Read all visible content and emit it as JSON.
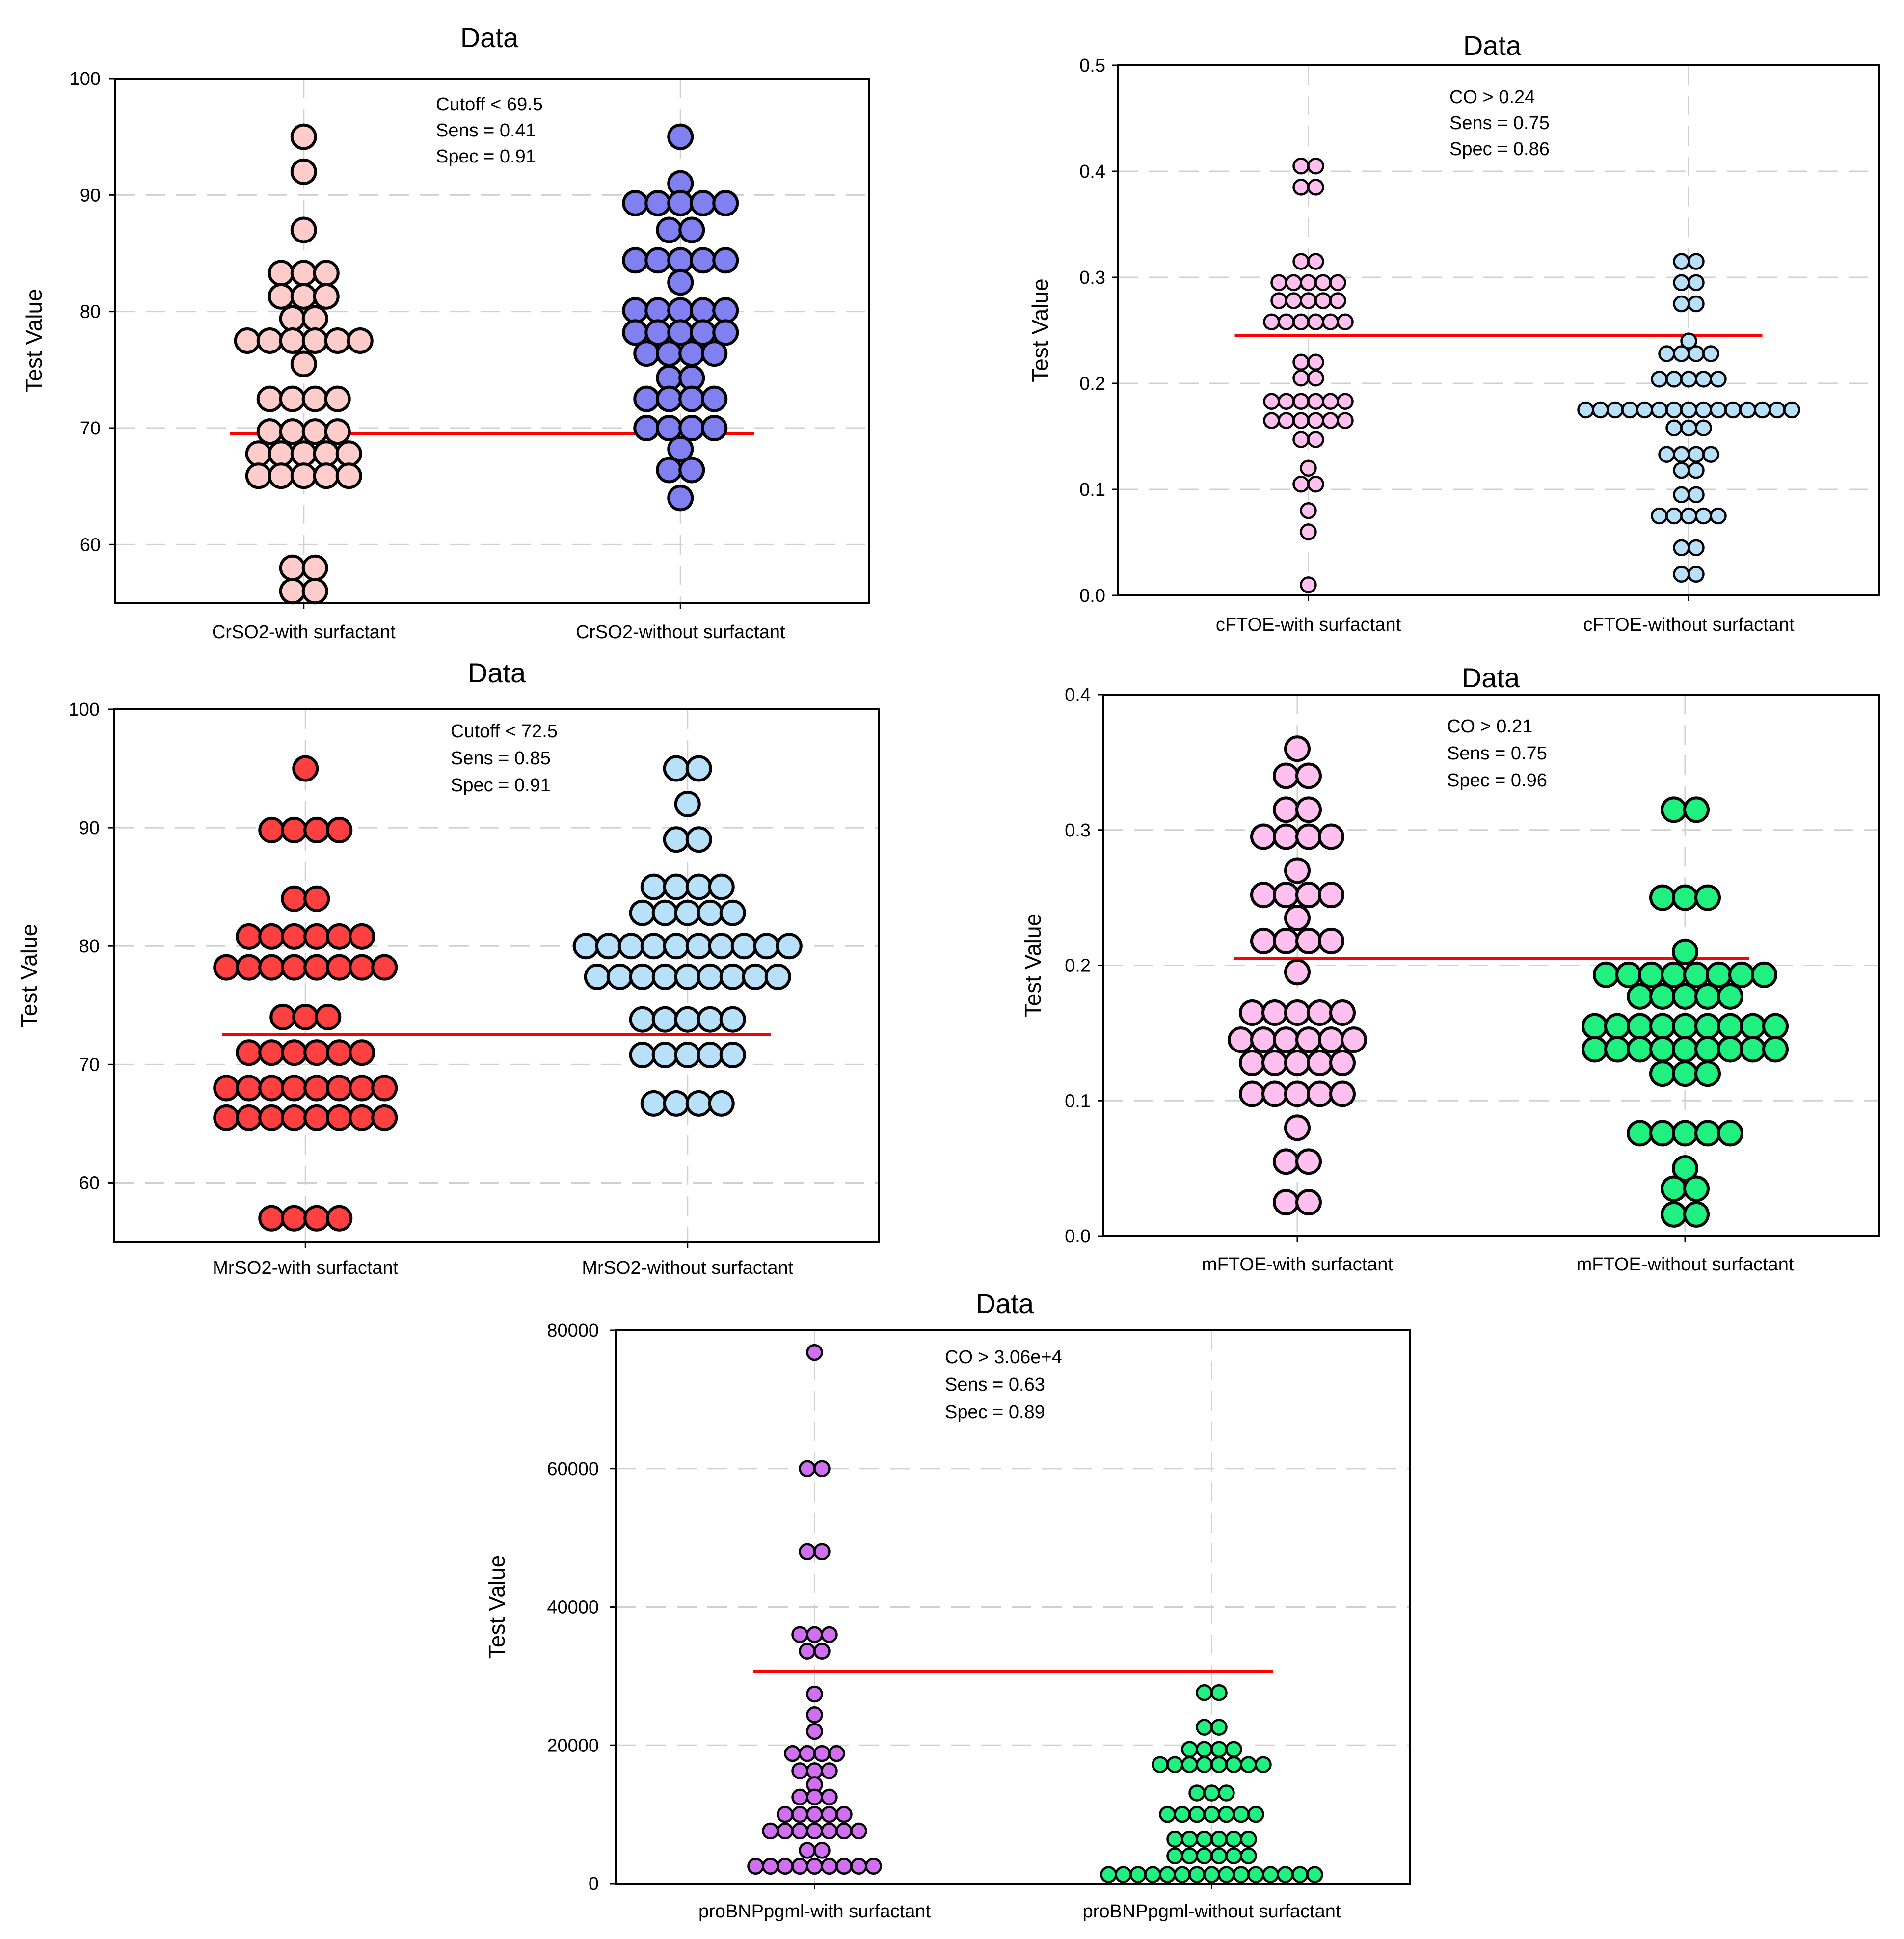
{
  "chart_data": [
    {
      "id": "crso2",
      "type": "scatter",
      "subtype": "dot-plot",
      "title": "Data",
      "xlabel": "",
      "ylabel": "Test Value",
      "ylim": [
        55,
        100
      ],
      "yticks": [
        "60",
        "70",
        "80",
        "90",
        "100"
      ],
      "grid": true,
      "cutoff": 69.5,
      "cutoff_color": "#ff0000",
      "annotations": [
        "Cutoff < 69.5",
        "Sens = 0.41",
        "Spec = 0.91"
      ],
      "categories": [
        "CrSO2-with surfactant",
        "CrSO2-without surfactant"
      ],
      "series": [
        {
          "name": "CrSO2-with surfactant",
          "color": "#ffcccc",
          "values": [
            95,
            92,
            87,
            83.3,
            83.3,
            83.3,
            81.3,
            81.3,
            81.3,
            79.4,
            79.4,
            77.5,
            77.5,
            77.5,
            77.5,
            77.5,
            77.5,
            75.5,
            72.5,
            72.5,
            72.5,
            72.5,
            69.7,
            69.7,
            69.7,
            69.7,
            67.8,
            67.8,
            67.8,
            67.8,
            67.8,
            65.9,
            65.9,
            65.9,
            65.9,
            65.9,
            58,
            58,
            56,
            56
          ]
        },
        {
          "name": "CrSO2-without surfactant",
          "color": "#8080f0",
          "values": [
            95,
            91,
            89.3,
            89.3,
            89.3,
            89.3,
            89.3,
            87,
            87,
            84.4,
            84.4,
            84.4,
            84.4,
            84.4,
            82.5,
            80.1,
            80.1,
            80.1,
            80.1,
            80.1,
            78.2,
            78.2,
            78.2,
            78.2,
            78.2,
            76.4,
            76.4,
            76.4,
            76.4,
            74.3,
            74.3,
            72.5,
            72.5,
            72.5,
            72.5,
            70,
            70,
            70,
            70,
            68.2,
            66.4,
            66.4,
            64
          ]
        }
      ]
    },
    {
      "id": "cftoe",
      "type": "scatter",
      "subtype": "dot-plot",
      "title": "Data",
      "xlabel": "",
      "ylabel": "Test Value",
      "ylim": [
        0,
        0.5
      ],
      "yticks": [
        "0.0",
        "0.1",
        "0.2",
        "0.3",
        "0.4",
        "0.5"
      ],
      "grid": true,
      "cutoff": 0.245,
      "cutoff_color": "#ff0000",
      "annotations": [
        "CO > 0.24",
        "Sens = 0.75",
        "Spec = 0.86"
      ],
      "categories": [
        "cFTOE-with surfactant",
        "cFTOE-without surfactant"
      ],
      "series": [
        {
          "name": "cFTOE-with surfactant",
          "color": "#ffc0f0",
          "values": [
            0.405,
            0.405,
            0.385,
            0.385,
            0.315,
            0.315,
            0.295,
            0.295,
            0.295,
            0.295,
            0.295,
            0.278,
            0.278,
            0.278,
            0.278,
            0.278,
            0.258,
            0.258,
            0.258,
            0.258,
            0.258,
            0.258,
            0.22,
            0.22,
            0.205,
            0.205,
            0.183,
            0.183,
            0.183,
            0.183,
            0.183,
            0.183,
            0.165,
            0.165,
            0.165,
            0.165,
            0.165,
            0.165,
            0.147,
            0.147,
            0.12,
            0.105,
            0.105,
            0.08,
            0.06,
            0.01
          ]
        },
        {
          "name": "cFTOE-without surfactant",
          "color": "#b8e0f8",
          "values": [
            0.315,
            0.315,
            0.295,
            0.295,
            0.275,
            0.275,
            0.24,
            0.228,
            0.228,
            0.228,
            0.228,
            0.204,
            0.204,
            0.204,
            0.204,
            0.204,
            0.175,
            0.175,
            0.175,
            0.175,
            0.175,
            0.175,
            0.175,
            0.175,
            0.175,
            0.175,
            0.175,
            0.175,
            0.175,
            0.175,
            0.175,
            0.158,
            0.158,
            0.158,
            0.133,
            0.133,
            0.133,
            0.133,
            0.118,
            0.118,
            0.095,
            0.095,
            0.075,
            0.075,
            0.075,
            0.075,
            0.075,
            0.045,
            0.045,
            0.02,
            0.02
          ]
        }
      ]
    },
    {
      "id": "mrso2",
      "type": "scatter",
      "subtype": "dot-plot",
      "title": "Data",
      "xlabel": "",
      "ylabel": "Test Value",
      "ylim": [
        55,
        100
      ],
      "yticks": [
        "60",
        "70",
        "80",
        "90",
        "100"
      ],
      "grid": true,
      "cutoff": 72.5,
      "cutoff_color": "#ff0000",
      "annotations": [
        "Cutoff < 72.5",
        "Sens = 0.85",
        "Spec = 0.91"
      ],
      "categories": [
        "MrSO2-with surfactant",
        "MrSO2-without surfactant"
      ],
      "series": [
        {
          "name": "MrSO2-with surfactant",
          "color": "#ff4040",
          "values": [
            95,
            89.8,
            89.8,
            89.8,
            89.8,
            84,
            84,
            80.8,
            80.8,
            80.8,
            80.8,
            80.8,
            80.8,
            78.2,
            78.2,
            78.2,
            78.2,
            78.2,
            78.2,
            78.2,
            78.2,
            74,
            74,
            74,
            71,
            71,
            71,
            71,
            71,
            71,
            68,
            68,
            68,
            68,
            68,
            68,
            68,
            68,
            65.5,
            65.5,
            65.5,
            65.5,
            65.5,
            65.5,
            65.5,
            65.5,
            57,
            57,
            57,
            57
          ]
        },
        {
          "name": "MrSO2-without surfactant",
          "color": "#b8e0f8",
          "values": [
            95,
            95,
            92,
            89,
            89,
            85,
            85,
            85,
            85,
            82.8,
            82.8,
            82.8,
            82.8,
            82.8,
            80,
            80,
            80,
            80,
            80,
            80,
            80,
            80,
            80,
            80,
            77.4,
            77.4,
            77.4,
            77.4,
            77.4,
            77.4,
            77.4,
            77.4,
            77.4,
            73.8,
            73.8,
            73.8,
            73.8,
            73.8,
            70.8,
            70.8,
            70.8,
            70.8,
            70.8,
            66.7,
            66.7,
            66.7,
            66.7
          ]
        }
      ]
    },
    {
      "id": "mftoe",
      "type": "scatter",
      "subtype": "dot-plot",
      "title": "Data",
      "xlabel": "",
      "ylabel": "Test Value",
      "ylim": [
        0,
        0.4
      ],
      "yticks": [
        "0.0",
        "0.1",
        "0.2",
        "0.3",
        "0.4"
      ],
      "grid": true,
      "cutoff": 0.205,
      "cutoff_color": "#ff0000",
      "annotations": [
        "CO > 0.21",
        "Sens = 0.75",
        "Spec = 0.96"
      ],
      "categories": [
        "mFTOE-with surfactant",
        "mFTOE-without surfactant"
      ],
      "series": [
        {
          "name": "mFTOE-with surfactant",
          "color": "#ffc0f0",
          "values": [
            0.36,
            0.34,
            0.34,
            0.315,
            0.315,
            0.295,
            0.295,
            0.295,
            0.295,
            0.27,
            0.252,
            0.252,
            0.252,
            0.252,
            0.235,
            0.218,
            0.218,
            0.218,
            0.218,
            0.195,
            0.165,
            0.165,
            0.165,
            0.165,
            0.165,
            0.145,
            0.145,
            0.145,
            0.145,
            0.145,
            0.145,
            0.128,
            0.128,
            0.128,
            0.128,
            0.128,
            0.105,
            0.105,
            0.105,
            0.105,
            0.105,
            0.08,
            0.055,
            0.055,
            0.025,
            0.025
          ]
        },
        {
          "name": "mFTOE-without surfactant",
          "color": "#20f080",
          "values": [
            0.315,
            0.315,
            0.25,
            0.25,
            0.25,
            0.21,
            0.193,
            0.193,
            0.193,
            0.193,
            0.193,
            0.193,
            0.193,
            0.193,
            0.177,
            0.177,
            0.177,
            0.177,
            0.177,
            0.155,
            0.155,
            0.155,
            0.155,
            0.155,
            0.155,
            0.155,
            0.155,
            0.155,
            0.138,
            0.138,
            0.138,
            0.138,
            0.138,
            0.138,
            0.138,
            0.138,
            0.138,
            0.12,
            0.12,
            0.12,
            0.076,
            0.076,
            0.076,
            0.076,
            0.076,
            0.05,
            0.035,
            0.035,
            0.016,
            0.016
          ]
        }
      ]
    },
    {
      "id": "probnp",
      "type": "scatter",
      "subtype": "dot-plot",
      "title": "Data",
      "xlabel": "",
      "ylabel": "Test Value",
      "ylim": [
        0,
        80000
      ],
      "yticks": [
        "0",
        "20000",
        "40000",
        "60000",
        "80000"
      ],
      "grid": true,
      "cutoff": 30600,
      "cutoff_color": "#ff0000",
      "annotations": [
        "CO > 3.06e+4",
        "Sens = 0.63",
        "Spec = 0.89"
      ],
      "categories": [
        "proBNPpgml-with surfactant",
        "proBNPpgml-without surfactant"
      ],
      "series": [
        {
          "name": "proBNPpgml-with surfactant",
          "color": "#d070f0",
          "values": [
            76800,
            60000,
            60000,
            48000,
            48000,
            36000,
            36000,
            36000,
            33600,
            33600,
            27400,
            24400,
            22000,
            18800,
            18800,
            18800,
            18800,
            16300,
            16300,
            16300,
            14300,
            12500,
            12500,
            12500,
            10000,
            10000,
            10000,
            10000,
            10000,
            7600,
            7600,
            7600,
            7600,
            7600,
            7600,
            7600,
            4800,
            4800,
            2500,
            2500,
            2500,
            2500,
            2500,
            2500,
            2500,
            2500,
            2500
          ]
        },
        {
          "name": "proBNPpgml-without surfactant",
          "color": "#20f080",
          "values": [
            27600,
            27600,
            22600,
            22600,
            19400,
            19400,
            19400,
            19400,
            17200,
            17200,
            17200,
            17200,
            17200,
            17200,
            17200,
            17200,
            13100,
            13100,
            13100,
            10000,
            10000,
            10000,
            10000,
            10000,
            10000,
            10000,
            6400,
            6400,
            6400,
            6400,
            6400,
            6400,
            4000,
            4000,
            4000,
            4000,
            4000,
            4000,
            1300,
            1300,
            1300,
            1300,
            1300,
            1300,
            1300,
            1300,
            1300,
            1300,
            1300,
            1300,
            1300,
            1300,
            1300
          ]
        }
      ]
    }
  ]
}
